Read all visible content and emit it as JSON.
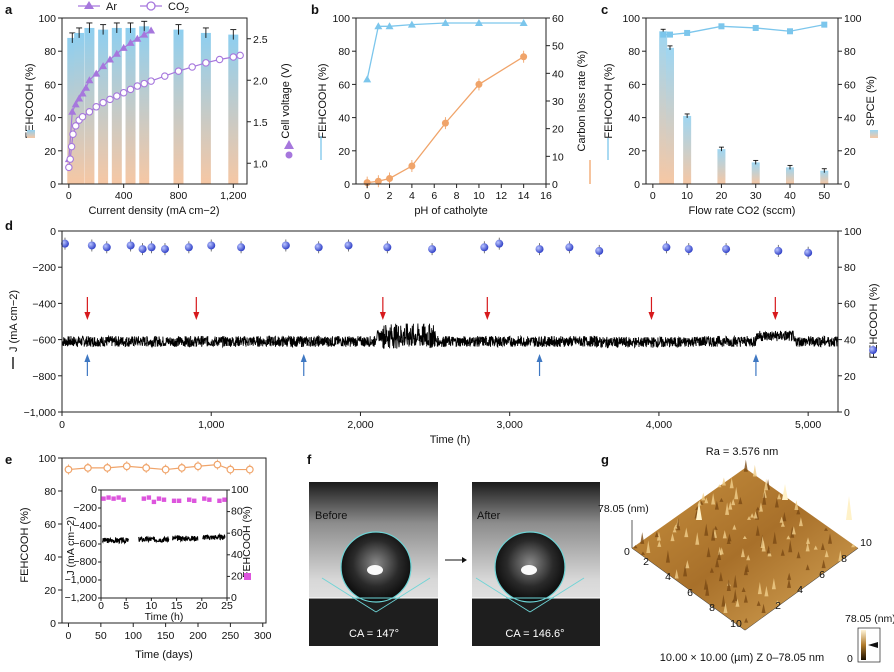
{
  "panels": {
    "a": "a",
    "b": "b",
    "c": "c",
    "d": "d",
    "e": "e",
    "f": "f",
    "g": "g"
  },
  "colors": {
    "fe_top": "#8ecff0",
    "fe_bottom": "#f6c7a4",
    "line_blue": "#7cc6ec",
    "line_orange": "#f0a46a",
    "ar": "#a677dd",
    "co2": "#a677dd",
    "arrow_red": "#d7191c",
    "arrow_blue": "#3f78c2",
    "dot_blue": "#4b5fd8",
    "pink": "#dd55dd",
    "afm_surface": "#b07a2a"
  },
  "chart_data": [
    {
      "id": "a",
      "type": "bar",
      "legend": [
        "Ar",
        "CO2"
      ],
      "xlabel": "Current density (mA cm−2)",
      "ylabel_left": "FEHCOOH (%)",
      "ylabel_right": "Cell voltage (V)",
      "x_ticks": [
        "0",
        "400",
        "800",
        "1,200"
      ],
      "y_left_ticks": [
        "0",
        "20",
        "40",
        "60",
        "80",
        "100"
      ],
      "y_right_ticks": [
        "1.0",
        "1.5",
        "2.0",
        "2.5"
      ],
      "xlim": [
        -50,
        1300
      ],
      "ylim_left": [
        0,
        100
      ],
      "ylim_right": [
        0.75,
        2.75
      ],
      "bars_x": [
        25,
        75,
        150,
        250,
        350,
        450,
        550,
        800,
        1000,
        1200
      ],
      "bars_y": [
        88,
        91,
        94,
        93,
        94,
        94,
        95,
        93,
        91,
        90
      ],
      "ar_x": [
        0,
        25,
        50,
        75,
        100,
        125,
        150,
        200,
        250,
        300,
        350,
        400,
        450,
        500,
        550,
        600
      ],
      "ar_y": [
        1.05,
        1.62,
        1.71,
        1.78,
        1.84,
        1.91,
        2.0,
        2.08,
        2.17,
        2.25,
        2.32,
        2.39,
        2.45,
        2.5,
        2.55,
        2.6
      ],
      "co2_x": [
        0,
        10,
        20,
        30,
        50,
        75,
        100,
        150,
        200,
        250,
        300,
        350,
        400,
        450,
        500,
        550,
        600,
        700,
        800,
        900,
        1000,
        1100,
        1200,
        1250
      ],
      "co2_y": [
        0.95,
        1.05,
        1.2,
        1.35,
        1.45,
        1.52,
        1.56,
        1.62,
        1.68,
        1.73,
        1.77,
        1.81,
        1.85,
        1.89,
        1.93,
        1.96,
        1.99,
        2.05,
        2.11,
        2.16,
        2.21,
        2.25,
        2.28,
        2.3
      ]
    },
    {
      "id": "b",
      "type": "line",
      "xlabel": "pH of catholyte",
      "ylabel_left": "FEHCOOH (%)",
      "ylabel_right": "Carbon loss rate (%)",
      "x_ticks": [
        "0",
        "2",
        "4",
        "6",
        "8",
        "10",
        "12",
        "14",
        "16"
      ],
      "y_left_ticks": [
        "0",
        "20",
        "40",
        "60",
        "80",
        "100"
      ],
      "y_right_ticks": [
        "0",
        "10",
        "20",
        "30",
        "40",
        "50",
        "60"
      ],
      "xlim": [
        -1,
        16
      ],
      "ylim_left": [
        0,
        100
      ],
      "ylim_right": [
        0,
        60
      ],
      "series": [
        {
          "x": [
            0,
            1,
            2,
            4,
            7,
            10,
            14
          ],
          "y": [
            63,
            95,
            95,
            96,
            97,
            97,
            97
          ]
        },
        {
          "x": [
            0,
            1,
            2,
            4,
            7,
            10,
            14
          ],
          "y": [
            0.5,
            1,
            2,
            6.5,
            22,
            36,
            46
          ]
        }
      ]
    },
    {
      "id": "c",
      "type": "bar",
      "xlabel": "Flow rate CO2 (sccm)",
      "ylabel_left": "FEHCOOH (%)",
      "ylabel_right": "SPCE (%)",
      "x_ticks": [
        "0",
        "10",
        "20",
        "30",
        "40",
        "50"
      ],
      "y_left_ticks": [
        "0",
        "20",
        "40",
        "60",
        "80",
        "100"
      ],
      "y_right_ticks": [
        "0",
        "20",
        "40",
        "60",
        "80",
        "100"
      ],
      "xlim": [
        -2,
        54
      ],
      "ylim": [
        0,
        100
      ],
      "bars_x": [
        3,
        5,
        10,
        20,
        30,
        40,
        50
      ],
      "bars_y": [
        92,
        82,
        41,
        21,
        13,
        10,
        8
      ],
      "line_x": [
        3,
        5,
        10,
        20,
        30,
        40,
        50
      ],
      "line_y": [
        90,
        90,
        91,
        95,
        94,
        92,
        96
      ]
    },
    {
      "id": "d",
      "type": "line",
      "xlabel": "Time (h)",
      "ylabel_left": "J (mA cm−2)",
      "ylabel_right": "FEHCOOH (%)",
      "x_ticks": [
        "0",
        "1,000",
        "2,000",
        "3,000",
        "4,000",
        "5,000"
      ],
      "y_left_ticks": [
        "−1,000",
        "−800",
        "−600",
        "−400",
        "−200",
        "0"
      ],
      "y_right_ticks": [
        "0",
        "20",
        "40",
        "60",
        "80",
        "100"
      ],
      "xlim": [
        0,
        5200
      ],
      "ylim_left": [
        -1000,
        0
      ],
      "ylim_right": [
        0,
        100
      ],
      "red_arrows_x": [
        170,
        900,
        2150,
        2850,
        3950,
        4780
      ],
      "blue_arrows_x": [
        170,
        1620,
        3200,
        4650
      ],
      "fe_x": [
        20,
        200,
        300,
        460,
        540,
        600,
        690,
        850,
        1000,
        1200,
        1500,
        1720,
        1920,
        2180,
        2480,
        2830,
        2930,
        3200,
        3400,
        3600,
        4050,
        4200,
        4450,
        4800,
        5000
      ],
      "fe_y": [
        93,
        92,
        91,
        92,
        90,
        91,
        90,
        91,
        92,
        91,
        92,
        91,
        92,
        91,
        90,
        91,
        93,
        90,
        91,
        89,
        91,
        90,
        90,
        89,
        88
      ]
    },
    {
      "id": "e",
      "type": "line",
      "xlabel": "Time (days)",
      "ylabel": "FEHCOOH (%)",
      "x_ticks": [
        "0",
        "50",
        "100",
        "150",
        "200",
        "250",
        "300"
      ],
      "y_ticks": [
        "0",
        "20",
        "40",
        "60",
        "80",
        "100"
      ],
      "xlim": [
        -10,
        305
      ],
      "ylim": [
        0,
        100
      ],
      "x": [
        0,
        30,
        60,
        90,
        120,
        150,
        175,
        200,
        230,
        250,
        280
      ],
      "y": [
        93,
        94,
        94,
        95,
        94,
        93,
        94,
        95,
        96,
        93,
        93
      ],
      "inset": {
        "xlabel": "Time (h)",
        "ylabel_left": "J (mA cm−2)",
        "ylabel_right": "FEHCOOH (%)",
        "x_ticks": [
          "0",
          "5",
          "10",
          "15",
          "20",
          "25"
        ],
        "y_left_ticks": [
          "−1,200",
          "−1,000",
          "−800",
          "−600",
          "−400",
          "−200",
          "0"
        ],
        "y_right_ticks": [
          "0",
          "20",
          "40",
          "60",
          "80",
          "100"
        ],
        "xlim": [
          0,
          25
        ],
        "ylim_left": [
          -1200,
          0
        ],
        "ylim_right": [
          0,
          100
        ],
        "fe_x": [
          0.5,
          1.5,
          2.5,
          3.5,
          4.5,
          8.5,
          9.5,
          10.5,
          11.5,
          12.5,
          14.5,
          15.5,
          17.5,
          18.5,
          20.5,
          21.5,
          23.5,
          24.5
        ],
        "fe_y": [
          92,
          93,
          92,
          93,
          91,
          92,
          93,
          89,
          92,
          91,
          90,
          90,
          91,
          90,
          92,
          91,
          90,
          91
        ]
      }
    }
  ],
  "panel_f": {
    "before": "Before",
    "after": "After",
    "ca_before": "CA = 147°",
    "ca_after": "CA = 146.6°"
  },
  "panel_g": {
    "ra": "Ra = 3.576 nm",
    "z_top": "78.05 (nm)",
    "z_zero": "0",
    "axis_ticks": [
      "2",
      "4",
      "6",
      "8",
      "10"
    ],
    "bottom_caption": "10.00 × 10.00 (µm) Z 0–78.05 nm",
    "scale_top": "78.05 (nm)",
    "scale_bottom": "0"
  }
}
